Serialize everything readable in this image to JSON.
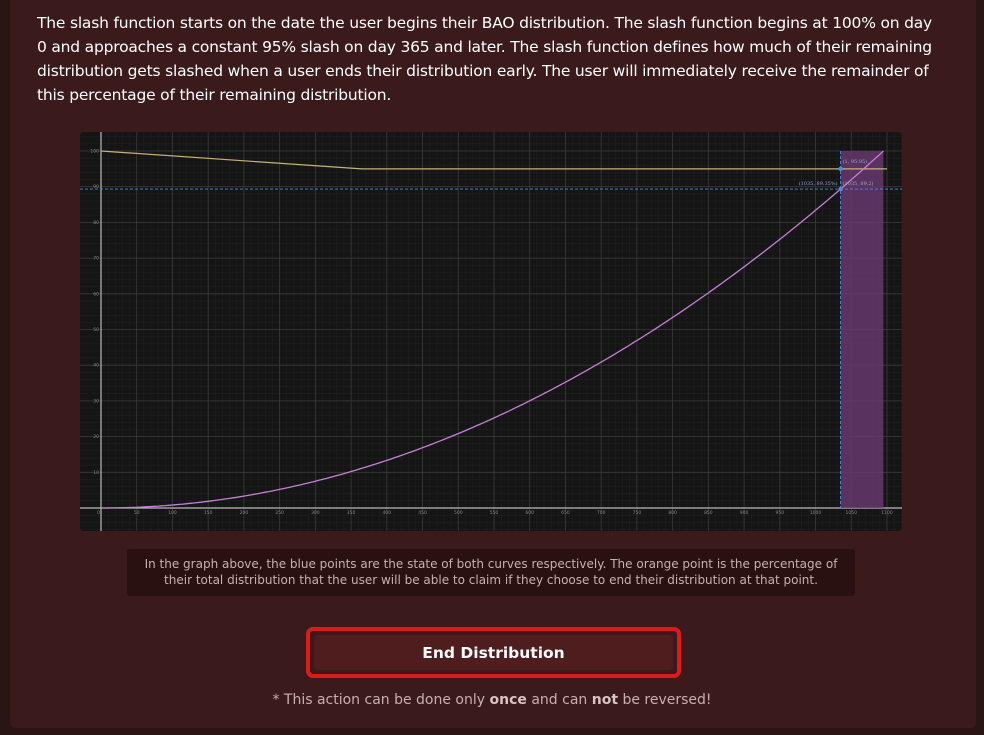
{
  "description": "The slash function starts on the date the user begins their BAO distribution. The slash function begins at 100% on day 0 and approaches a constant 95% slash on day 365 and later. The slash function defines how much of their remaining distribution gets slashed when a user ends their distribution early. The user will immediately receive the remainder of this percentage of their remaining distribution.",
  "caption": "In the graph above, the blue points are the state of both curves respectively. The orange point is the percentage of their total distribution that the user will be able to claim if they choose to end their distribution at that point.",
  "button": {
    "label": "End Distribution"
  },
  "note": {
    "prefix": "* This action can be done only ",
    "once": "once",
    "middle": " and can ",
    "not": "not",
    "suffix": " be reversed!"
  },
  "colors": {
    "accent_red": "#e0191b",
    "purple_curve": "#c77fd6",
    "slash_curve": "#c9b07a",
    "highlight": "#6b3a73",
    "crosshair": "#4a8fe0"
  },
  "chart_data": {
    "type": "line",
    "x_ticks": [
      "0",
      "50",
      "100",
      "150",
      "200",
      "250",
      "300",
      "350",
      "400",
      "450",
      "500",
      "550",
      "600",
      "650",
      "700",
      "750",
      "800",
      "850",
      "900",
      "950",
      "1000",
      "1050",
      "1100"
    ],
    "y_ticks": [
      "0",
      "10",
      "20",
      "30",
      "40",
      "50",
      "60",
      "70",
      "80",
      "90",
      "100"
    ],
    "xlim": [
      0,
      1100
    ],
    "ylim": [
      0,
      100
    ],
    "series": [
      {
        "kind": "slash",
        "x": [
          0,
          365,
          1100
        ],
        "y": [
          100,
          95,
          95
        ]
      },
      {
        "kind": "distribution",
        "x": [
          0,
          100,
          200,
          300,
          400,
          500,
          600,
          700,
          800,
          900,
          1000,
          1095
        ],
        "y": [
          0,
          0.8,
          3.3,
          7.5,
          13.3,
          20.8,
          30.0,
          40.9,
          53.4,
          67.6,
          83.4,
          100
        ]
      }
    ],
    "highlight_range": [
      1035,
      1095
    ],
    "points": [
      {
        "x": 1035,
        "y": 89.35
      },
      {
        "x": 1035,
        "y": 95
      }
    ],
    "annotations": [
      "(1035, 89.35%)",
      "(1, 95.95)",
      "(1035, 89.2)"
    ]
  }
}
